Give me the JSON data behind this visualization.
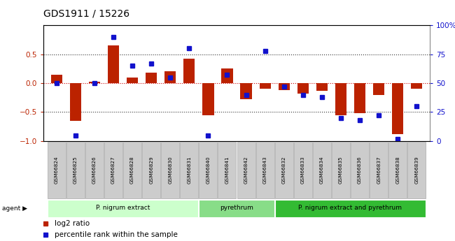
{
  "title": "GDS1911 / 15226",
  "samples": [
    "GSM66824",
    "GSM66825",
    "GSM66826",
    "GSM66827",
    "GSM66828",
    "GSM66829",
    "GSM66830",
    "GSM66831",
    "GSM66840",
    "GSM66841",
    "GSM66842",
    "GSM66843",
    "GSM66832",
    "GSM66833",
    "GSM66834",
    "GSM66835",
    "GSM66836",
    "GSM66837",
    "GSM66838",
    "GSM66839"
  ],
  "log2_ratio": [
    0.15,
    -0.65,
    0.02,
    0.65,
    0.1,
    0.18,
    0.2,
    0.42,
    -0.55,
    0.25,
    -0.28,
    -0.1,
    -0.12,
    -0.18,
    -0.13,
    -0.55,
    -0.52,
    -0.2,
    -0.88,
    -0.1
  ],
  "percentile": [
    50,
    5,
    50,
    90,
    65,
    67,
    55,
    80,
    5,
    57,
    40,
    78,
    47,
    40,
    38,
    20,
    18,
    22,
    2,
    30
  ],
  "groups": [
    {
      "label": "P. nigrum extract",
      "start": 0,
      "end": 7,
      "color": "#ccffcc"
    },
    {
      "label": "pyrethrum",
      "start": 8,
      "end": 11,
      "color": "#88dd88"
    },
    {
      "label": "P. nigrum extract and pyrethrum",
      "start": 12,
      "end": 19,
      "color": "#33bb33"
    }
  ],
  "ylim_left": [
    -1.0,
    1.0
  ],
  "ylim_right": [
    0,
    100
  ],
  "yticks_left": [
    -1.0,
    -0.5,
    0.0,
    0.5
  ],
  "yticks_right": [
    0,
    25,
    50,
    75,
    100
  ],
  "bar_color": "#bb2200",
  "dot_color": "#1111cc",
  "hline_zero_color": "#cc0000",
  "hline_dotted_color": "#333333",
  "sample_box_color": "#cccccc",
  "sample_box_edge": "#aaaaaa",
  "legend_items": [
    {
      "label": "log2 ratio",
      "color": "#bb2200"
    },
    {
      "label": "percentile rank within the sample",
      "color": "#1111cc"
    }
  ]
}
